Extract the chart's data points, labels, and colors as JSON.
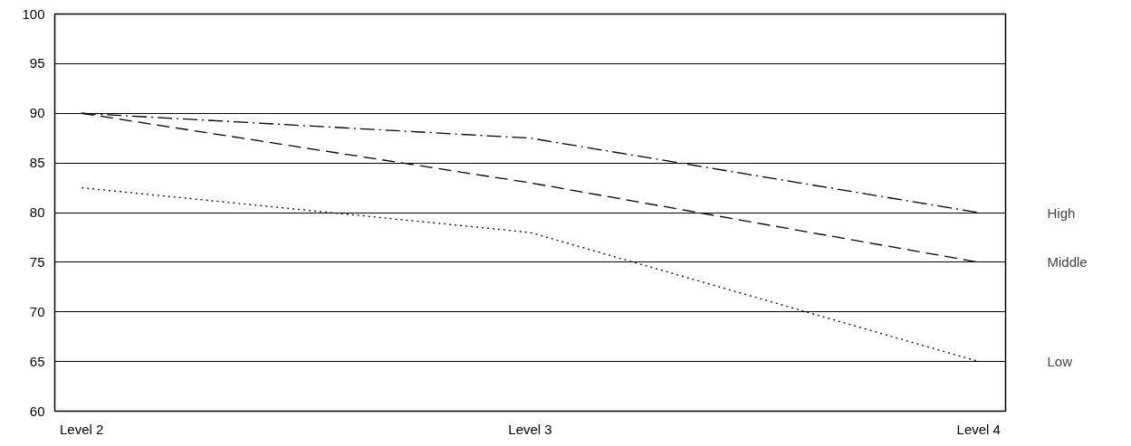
{
  "chart_data": {
    "type": "line",
    "categories": [
      "Level 2",
      "Level 3",
      "Level 4"
    ],
    "series": [
      {
        "name": "High",
        "color": "#000000",
        "line_style": "dashdot",
        "values": [
          90,
          87.5,
          80
        ]
      },
      {
        "name": "Middle",
        "color": "#000000",
        "line_style": "dashed",
        "values": [
          90,
          83,
          75
        ]
      },
      {
        "name": "Low",
        "color": "#000000",
        "line_style": "dotted",
        "values": [
          82.5,
          78,
          65
        ]
      }
    ],
    "ylim": [
      60,
      100
    ],
    "yticks": [
      60,
      65,
      70,
      75,
      80,
      85,
      90,
      95,
      100
    ],
    "grid": "y",
    "marker": "none"
  }
}
